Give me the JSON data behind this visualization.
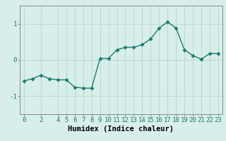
{
  "x": [
    0,
    1,
    2,
    3,
    4,
    5,
    6,
    7,
    8,
    9,
    10,
    11,
    12,
    13,
    14,
    15,
    16,
    17,
    18,
    19,
    20,
    21,
    22,
    23
  ],
  "y": [
    -0.58,
    -0.52,
    -0.42,
    -0.52,
    -0.55,
    -0.55,
    -0.75,
    -0.78,
    -0.78,
    0.04,
    0.04,
    0.28,
    0.35,
    0.35,
    0.42,
    0.58,
    0.88,
    1.05,
    0.88,
    0.28,
    0.12,
    0.02,
    0.18,
    0.18
  ],
  "line_color": "#1a7a6e",
  "marker": "D",
  "marker_size": 2.5,
  "linewidth": 1.0,
  "xlabel": "Humidex (Indice chaleur)",
  "ylim": [
    -1.5,
    1.5
  ],
  "xlim": [
    -0.5,
    23.5
  ],
  "yticks": [
    -1,
    0,
    1
  ],
  "xticks": [
    0,
    2,
    4,
    5,
    6,
    7,
    8,
    9,
    10,
    11,
    12,
    13,
    14,
    15,
    16,
    17,
    18,
    19,
    20,
    21,
    22,
    23
  ],
  "grid_color": "#b8d8d0",
  "bg_color": "#d8eeea",
  "spine_color": "#888888",
  "xlabel_fontsize": 7.5,
  "tick_fontsize": 6.5
}
